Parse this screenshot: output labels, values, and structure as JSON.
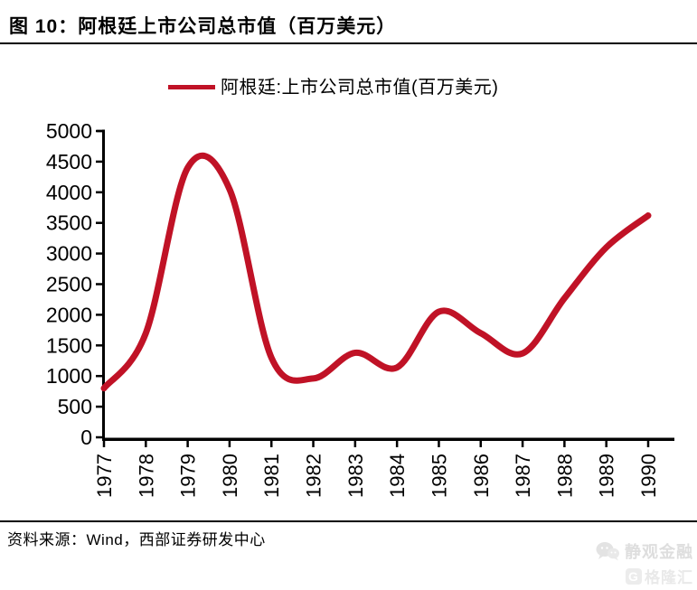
{
  "title": "图 10：阿根廷上市公司总市值（百万美元）",
  "legend": {
    "label": "阿根廷:上市公司总市值(百万美元)"
  },
  "source": "资料来源：Wind，西部证券研发中心",
  "watermark": {
    "line1": "静观金融",
    "line2": "格隆汇"
  },
  "colors": {
    "line": "#C01226",
    "axis": "#000000",
    "text": "#000000",
    "watermark": "#e0e0e0"
  },
  "chart_data": {
    "type": "line",
    "title": "阿根廷:上市公司总市值(百万美元)",
    "categories": [
      "1977",
      "1978",
      "1979",
      "1980",
      "1981",
      "1982",
      "1983",
      "1984",
      "1985",
      "1986",
      "1987",
      "1988",
      "1989",
      "1990"
    ],
    "series": [
      {
        "name": "阿根廷:上市公司总市值(百万美元)",
        "values": [
          800,
          1700,
          4400,
          4050,
          1300,
          960,
          1380,
          1140,
          2050,
          1700,
          1370,
          2270,
          3100,
          3620
        ]
      }
    ],
    "xlabel": "",
    "ylabel": "",
    "ylim": [
      0,
      5000
    ],
    "ytick_step": 500,
    "grid": false,
    "smooth": true,
    "legend_position": "top",
    "x_tick_rotation": -90
  }
}
